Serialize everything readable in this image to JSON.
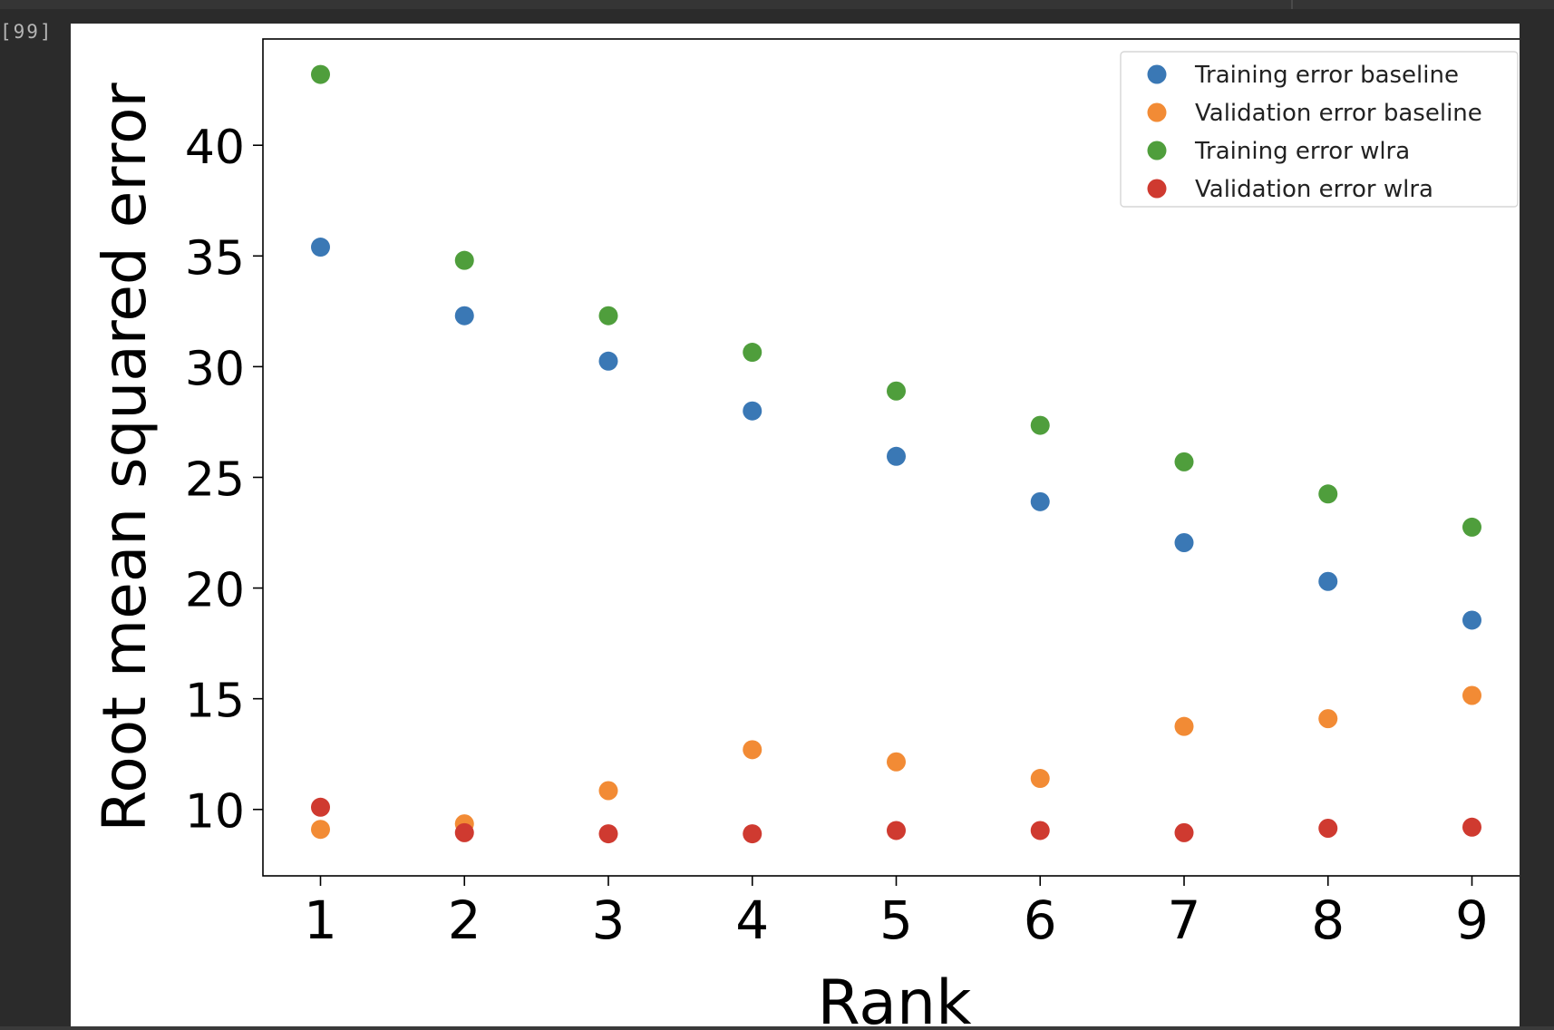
{
  "notebook": {
    "cell_prompt": "[99]"
  },
  "chart_data": {
    "type": "scatter",
    "x": [
      1,
      2,
      3,
      4,
      5,
      6,
      7,
      8,
      9
    ],
    "xlabel": "Rank",
    "ylabel": "Root mean squared error",
    "xlim": [
      0.6,
      9.4
    ],
    "ylim": [
      7.0,
      44.8
    ],
    "xticks": [
      1,
      2,
      3,
      4,
      5,
      6,
      7,
      8,
      9
    ],
    "yticks": [
      10,
      15,
      20,
      25,
      30,
      35,
      40
    ],
    "grid": false,
    "legend_position": "top-right",
    "series": [
      {
        "name": "Training error baseline",
        "color": "#3a78b5",
        "values": [
          35.4,
          32.3,
          30.25,
          28.0,
          25.95,
          23.9,
          22.05,
          20.3,
          18.55
        ]
      },
      {
        "name": "Validation error baseline",
        "color": "#f28b35",
        "values": [
          9.1,
          9.35,
          10.85,
          12.7,
          12.15,
          11.4,
          13.75,
          14.1,
          15.15
        ]
      },
      {
        "name": "Training error wlra",
        "color": "#4f9e3c",
        "values": [
          43.2,
          34.8,
          32.3,
          30.65,
          28.9,
          27.35,
          25.7,
          24.25,
          22.75
        ]
      },
      {
        "name": "Validation error wlra",
        "color": "#cf3a30",
        "values": [
          10.1,
          8.95,
          8.9,
          8.9,
          9.05,
          9.05,
          8.95,
          9.15,
          9.2
        ]
      }
    ]
  }
}
